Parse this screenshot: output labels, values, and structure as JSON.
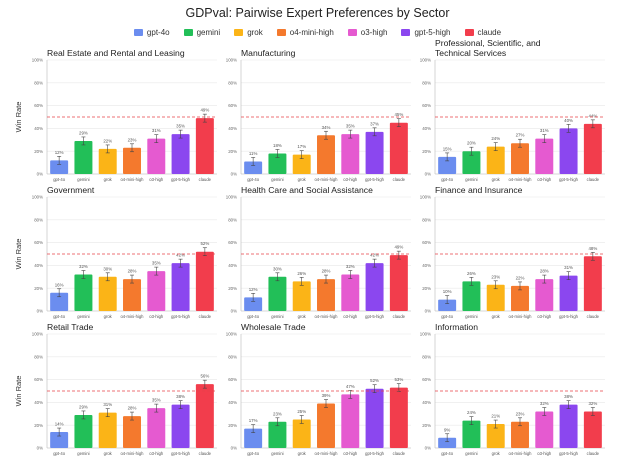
{
  "title": "GDPval: Pairwise Expert Preferences by Sector",
  "legend": [
    {
      "name": "gpt-4o",
      "color": "#6b8def"
    },
    {
      "name": "gemini",
      "color": "#22bf58"
    },
    {
      "name": "grok",
      "color": "#fbb417"
    },
    {
      "name": "o4-mini-high",
      "color": "#f4792d"
    },
    {
      "name": "o3-high",
      "color": "#e55ad0"
    },
    {
      "name": "gpt-5-high",
      "color": "#8b47ef"
    },
    {
      "name": "claude",
      "color": "#f23d4c"
    }
  ],
  "chart_data": [
    {
      "type": "bar",
      "title": "Real Estate and Rental and Leasing",
      "ylabel": "Win Rate",
      "ylim": [
        0,
        100
      ],
      "yticks": [
        "0%",
        "20%",
        "40%",
        "60%",
        "80%",
        "100%"
      ],
      "reference_line": 50,
      "categories": [
        "gpt-4o",
        "gemini",
        "grok",
        "o4-mini-high",
        "o3-high",
        "gpt-5-high",
        "claude"
      ],
      "values": [
        12,
        29,
        22,
        23,
        31,
        35,
        49
      ],
      "labels": [
        "12%",
        "29%",
        "22%",
        "23%",
        "31%",
        "35%",
        "49%"
      ]
    },
    {
      "type": "bar",
      "title": "Manufacturing",
      "ylabel": "",
      "ylim": [
        0,
        100
      ],
      "yticks": [
        "0%",
        "20%",
        "40%",
        "60%",
        "80%",
        "100%"
      ],
      "reference_line": 50,
      "categories": [
        "gpt-4o",
        "gemini",
        "grok",
        "o4-mini-high",
        "o3-high",
        "gpt-5-high",
        "claude"
      ],
      "values": [
        11,
        18,
        17,
        34,
        35,
        37,
        45
      ],
      "labels": [
        "11%",
        "18%",
        "17%",
        "34%",
        "35%",
        "37%",
        "45%"
      ]
    },
    {
      "type": "bar",
      "title": "Professional, Scientific, and Technical Services",
      "ylabel": "",
      "ylim": [
        0,
        100
      ],
      "yticks": [
        "0%",
        "20%",
        "40%",
        "60%",
        "80%",
        "100%"
      ],
      "reference_line": 50,
      "categories": [
        "gpt-4o",
        "gemini",
        "grok",
        "o4-mini-high",
        "o3-high",
        "gpt-5-high",
        "claude"
      ],
      "values": [
        15,
        20,
        24,
        27,
        31,
        40,
        44
      ],
      "labels": [
        "15%",
        "20%",
        "24%",
        "27%",
        "31%",
        "40%",
        "44%"
      ]
    },
    {
      "type": "bar",
      "title": "Government",
      "ylabel": "Win Rate",
      "ylim": [
        0,
        100
      ],
      "yticks": [
        "0%",
        "20%",
        "40%",
        "60%",
        "80%",
        "100%"
      ],
      "reference_line": 50,
      "categories": [
        "gpt-4o",
        "gemini",
        "grok",
        "o4-mini-high",
        "o3-high",
        "gpt-5-high",
        "claude"
      ],
      "values": [
        16,
        32,
        30,
        28,
        35,
        42,
        52
      ],
      "labels": [
        "16%",
        "32%",
        "30%",
        "28%",
        "35%",
        "42%",
        "52%"
      ]
    },
    {
      "type": "bar",
      "title": "Health Care and Social Assistance",
      "ylabel": "",
      "ylim": [
        0,
        100
      ],
      "yticks": [
        "0%",
        "20%",
        "40%",
        "60%",
        "80%",
        "100%"
      ],
      "reference_line": 50,
      "categories": [
        "gpt-4o",
        "gemini",
        "grok",
        "o4-mini-high",
        "o3-high",
        "gpt-5-high",
        "claude"
      ],
      "values": [
        12,
        30,
        26,
        28,
        32,
        42,
        49
      ],
      "labels": [
        "12%",
        "30%",
        "26%",
        "28%",
        "32%",
        "42%",
        "49%"
      ]
    },
    {
      "type": "bar",
      "title": "Finance and Insurance",
      "ylabel": "",
      "ylim": [
        0,
        100
      ],
      "yticks": [
        "0%",
        "20%",
        "40%",
        "60%",
        "80%",
        "100%"
      ],
      "reference_line": 50,
      "categories": [
        "gpt-4o",
        "gemini",
        "grok",
        "o4-mini-high",
        "o3-high",
        "gpt-5-high",
        "claude"
      ],
      "values": [
        10,
        26,
        23,
        22,
        28,
        31,
        48
      ],
      "labels": [
        "10%",
        "26%",
        "23%",
        "22%",
        "28%",
        "31%",
        "48%"
      ]
    },
    {
      "type": "bar",
      "title": "Retail Trade",
      "ylabel": "Win Rate",
      "ylim": [
        0,
        100
      ],
      "yticks": [
        "0%",
        "20%",
        "40%",
        "60%",
        "80%",
        "100%"
      ],
      "reference_line": 50,
      "categories": [
        "gpt-4o",
        "gemini",
        "grok",
        "o4-mini-high",
        "o3-high",
        "gpt-5-high",
        "claude"
      ],
      "values": [
        14,
        29,
        31,
        28,
        35,
        38,
        56
      ],
      "labels": [
        "14%",
        "29%",
        "31%",
        "28%",
        "35%",
        "38%",
        "56%"
      ]
    },
    {
      "type": "bar",
      "title": "Wholesale Trade",
      "ylabel": "",
      "ylim": [
        0,
        100
      ],
      "yticks": [
        "0%",
        "20%",
        "40%",
        "60%",
        "80%",
        "100%"
      ],
      "reference_line": 50,
      "categories": [
        "gpt-4o",
        "gemini",
        "grok",
        "o4-mini-high",
        "o3-high",
        "gpt-5-high",
        "claude"
      ],
      "values": [
        17,
        23,
        25,
        39,
        47,
        52,
        53
      ],
      "labels": [
        "17%",
        "23%",
        "25%",
        "39%",
        "47%",
        "52%",
        "53%"
      ]
    },
    {
      "type": "bar",
      "title": "Information",
      "ylabel": "",
      "ylim": [
        0,
        100
      ],
      "yticks": [
        "0%",
        "20%",
        "40%",
        "60%",
        "80%",
        "100%"
      ],
      "reference_line": 50,
      "categories": [
        "gpt-4o",
        "gemini",
        "grok",
        "o4-mini-high",
        "o3-high",
        "gpt-5-high",
        "claude"
      ],
      "values": [
        9,
        24,
        21,
        23,
        32,
        38,
        32
      ],
      "labels": [
        "9%",
        "24%",
        "21%",
        "23%",
        "32%",
        "38%",
        "32%"
      ]
    }
  ]
}
